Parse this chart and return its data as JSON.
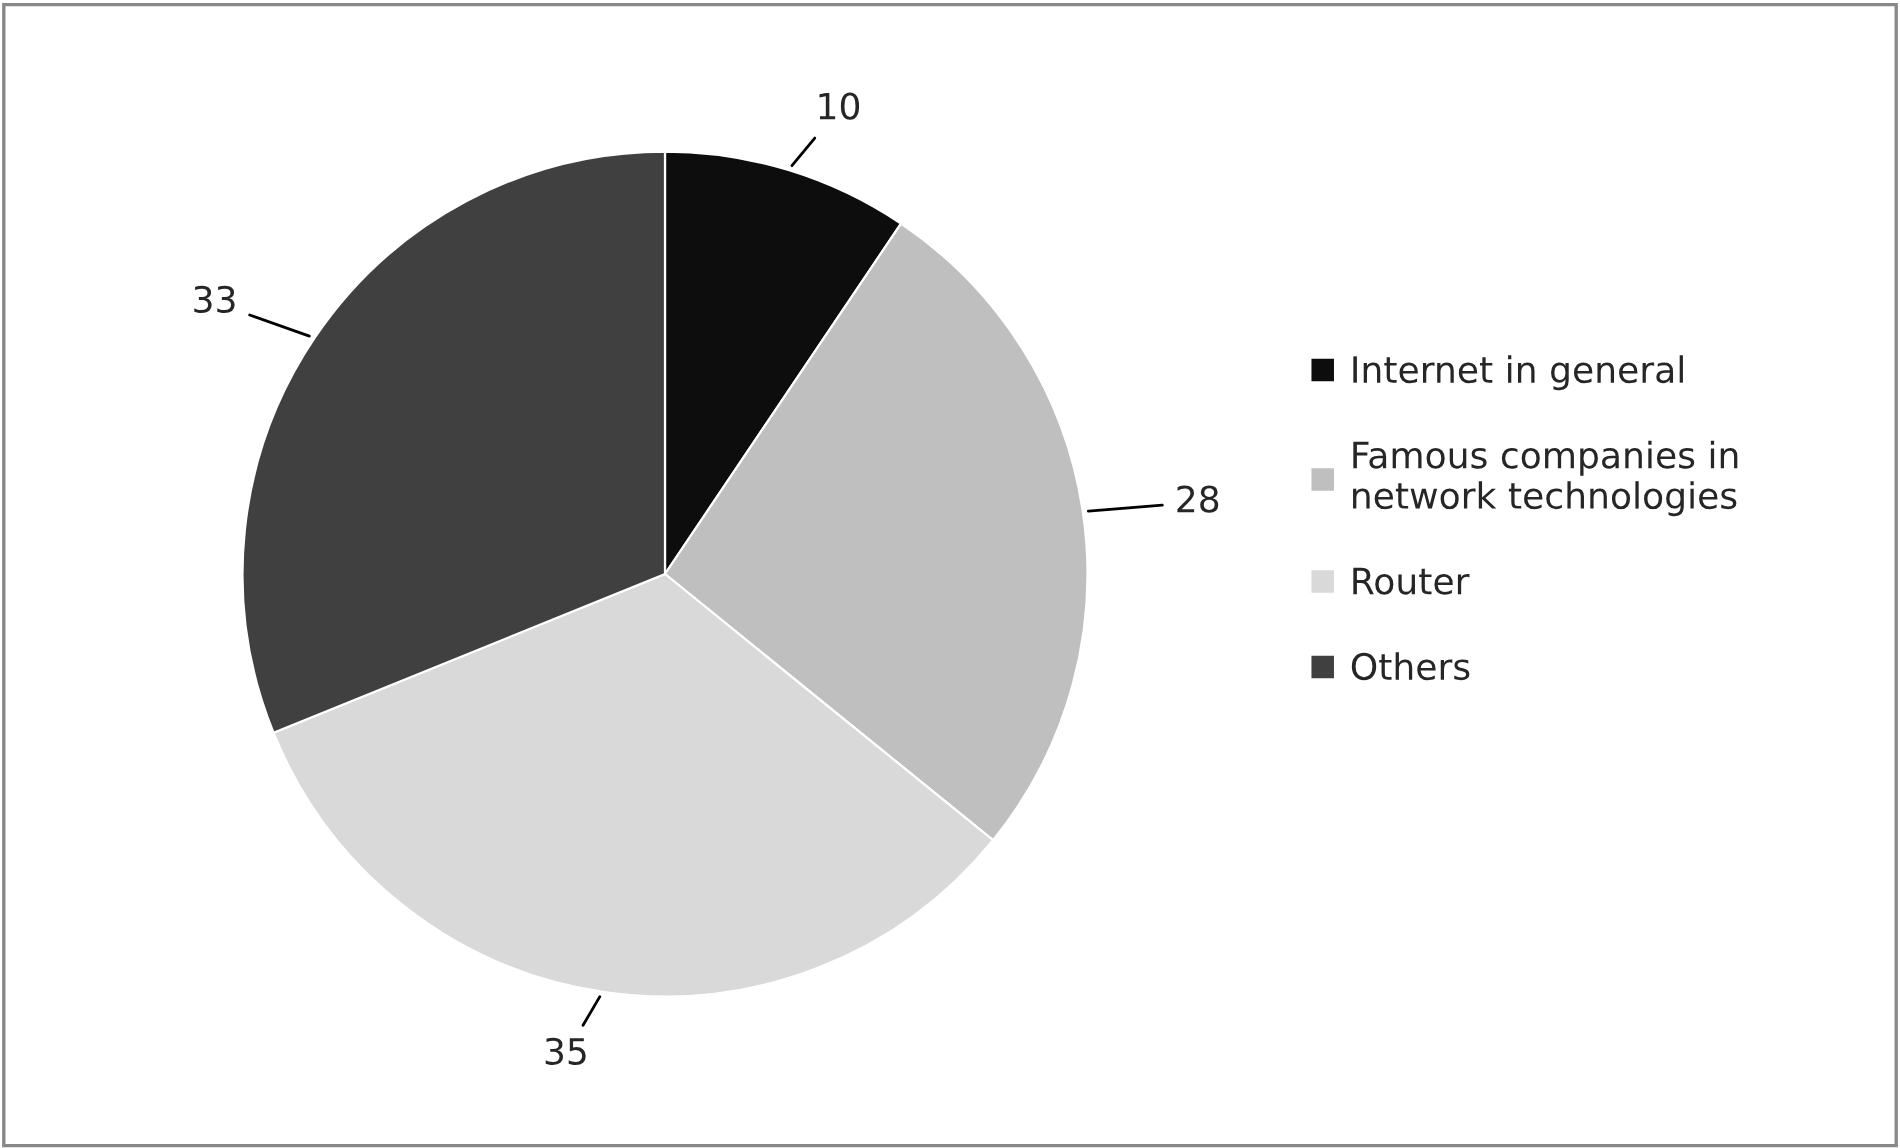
{
  "chart_data": {
    "type": "pie",
    "categories": [
      "Internet in general",
      "Famous companies in\nnetwork technologies",
      "Router",
      "Others"
    ],
    "values": [
      10,
      28,
      35,
      33
    ],
    "colors": [
      "#0d0d0d",
      "#bfbfbf",
      "#d9d9d9",
      "#404040"
    ],
    "data_labels": true,
    "legend": "right"
  }
}
